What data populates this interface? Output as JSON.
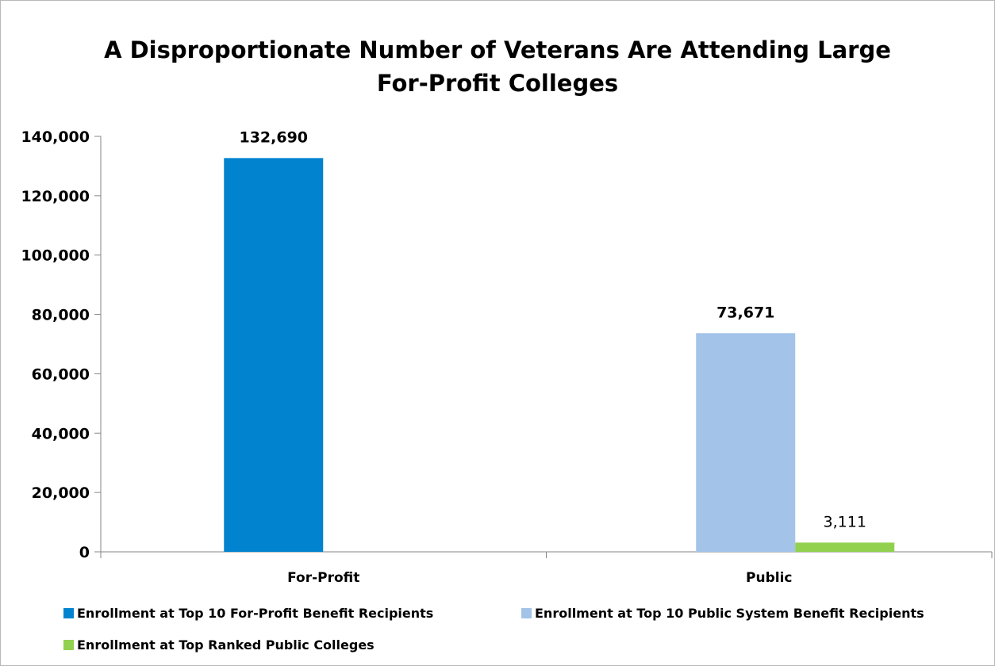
{
  "chart_data": {
    "type": "bar",
    "title": "A Disproportionate Number of Veterans Are Attending Large For-Profit Colleges",
    "title_lines": [
      "A Disproportionate Number of Veterans Are Attending Large",
      "For-Profit Colleges"
    ],
    "categories": [
      "For-Profit",
      "Public"
    ],
    "series": [
      {
        "name": "Enrollment at Top 10 For-Profit Benefit Recipients",
        "color": "#0283cf",
        "values": [
          132690,
          null
        ],
        "labels": [
          "132,690",
          ""
        ]
      },
      {
        "name": "Enrollment at Top 10 Public System Benefit Recipients",
        "color": "#a3c3e8",
        "values": [
          null,
          73671
        ],
        "labels": [
          "",
          "73,671"
        ]
      },
      {
        "name": "Enrollment at Top Ranked Public Colleges",
        "color": "#92d050",
        "values": [
          null,
          3111
        ],
        "labels": [
          "",
          "3,111"
        ]
      }
    ],
    "y_ticks": [
      "0",
      "20,000",
      "40,000",
      "60,000",
      "80,000",
      "100,000",
      "120,000",
      "140,000"
    ],
    "ylim": [
      0,
      140000
    ],
    "xlabel": "",
    "ylabel": "",
    "grid": false,
    "legend_position": "bottom"
  }
}
